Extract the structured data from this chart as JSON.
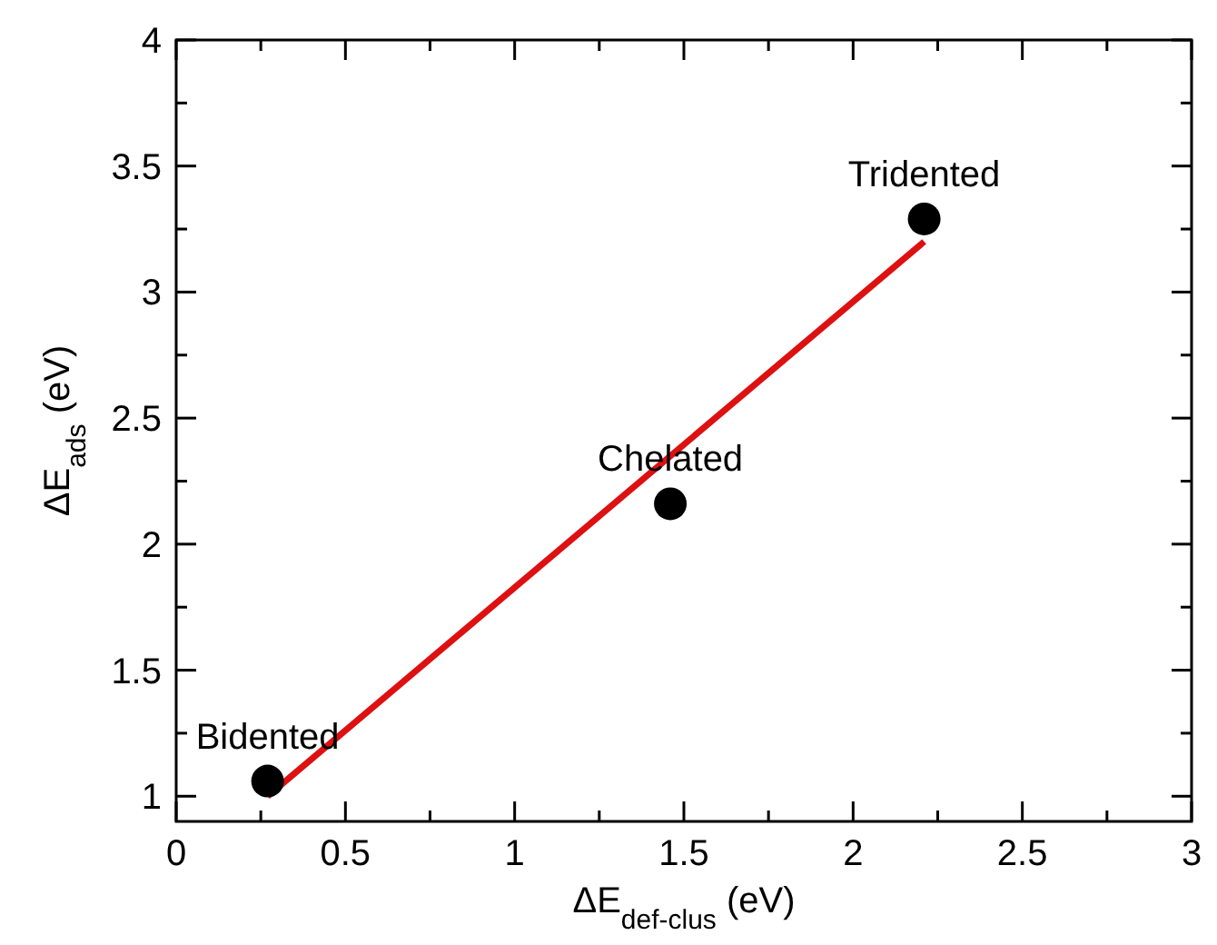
{
  "chart_data": {
    "type": "scatter",
    "xlabel": "ΔE$_{def-clus}$ (eV)",
    "ylabel": "ΔE$_{ads}$ (eV)",
    "xlim": [
      0,
      3
    ],
    "ylim": [
      0.9,
      4
    ],
    "xticks": [
      0,
      {
        "value": 0.25,
        "label": null
      },
      0.5,
      {
        "value": 0.75,
        "label": null
      },
      1,
      {
        "value": 1.25,
        "label": null
      },
      1.5,
      {
        "value": 1.75,
        "label": null
      },
      2,
      {
        "value": 2.25,
        "label": null
      },
      2.5,
      {
        "value": 2.75,
        "label": null
      },
      3
    ],
    "yticks": [
      1,
      {
        "value": 1.25,
        "label": null
      },
      1.5,
      {
        "value": 1.75,
        "label": null
      },
      2,
      {
        "value": 2.25,
        "label": null
      },
      2.5,
      {
        "value": 2.75,
        "label": null
      },
      3,
      {
        "value": 3.25,
        "label": null
      },
      3.5,
      {
        "value": 3.75,
        "label": null
      },
      4
    ],
    "series": [
      {
        "color": "#000000",
        "marker": "circle",
        "x": [
          0.27,
          1.46,
          2.21
        ],
        "values": [
          1.06,
          2.16,
          3.29
        ]
      },
      {
        "type": "line",
        "color": "#dd1111",
        "marker": "none",
        "line_style": "solid",
        "x": [
          0.27,
          2.21
        ],
        "values": [
          1.0,
          3.2
        ]
      }
    ],
    "annotations": [
      {
        "text": "Bidented",
        "x": 0.27,
        "y": 1.06
      },
      {
        "text": "Chelated",
        "x": 1.46,
        "y": 2.16
      },
      {
        "text": "Tridented",
        "x": 2.21,
        "y": 3.29
      }
    ],
    "grid": false
  }
}
